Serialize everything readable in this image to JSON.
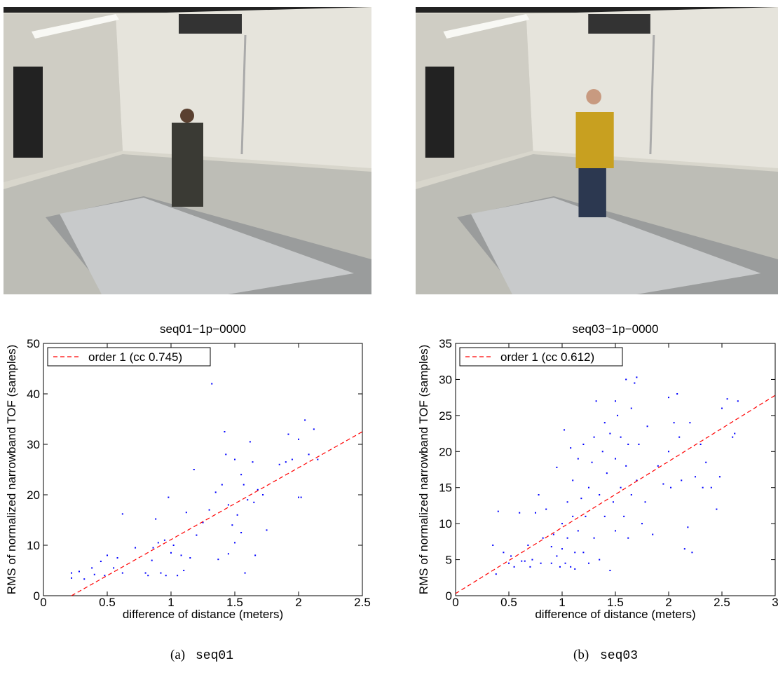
{
  "chart_data": [
    {
      "type": "scatter",
      "title": "seq01−1p−0000",
      "x_label": "difference of distance (meters)",
      "y_label": "RMS of normalized narrowband TOF (samples)",
      "xlim": [
        0,
        2.5
      ],
      "ylim": [
        0,
        50
      ],
      "xticks": [
        0,
        0.5,
        1,
        1.5,
        2,
        2.5
      ],
      "yticks": [
        0,
        10,
        20,
        30,
        40,
        50
      ],
      "legend": "upper left",
      "series": [
        {
          "color": "#0000ff",
          "x": [
            0.22,
            0.22,
            0.28,
            0.32,
            0.38,
            0.4,
            0.45,
            0.48,
            0.5,
            0.55,
            0.58,
            0.62,
            0.62,
            0.72,
            0.8,
            0.82,
            0.85,
            0.86,
            0.88,
            0.9,
            0.92,
            0.95,
            0.96,
            0.98,
            1.0,
            1.02,
            1.05,
            1.08,
            1.1,
            1.12,
            1.15,
            1.18,
            1.2,
            1.25,
            1.3,
            1.32,
            1.35,
            1.37,
            1.4,
            1.42,
            1.43,
            1.45,
            1.45,
            1.48,
            1.5,
            1.5,
            1.52,
            1.55,
            1.55,
            1.57,
            1.58,
            1.6,
            1.62,
            1.64,
            1.65,
            1.66,
            1.68,
            1.72,
            1.75,
            1.85,
            1.9,
            1.92,
            1.95,
            2.0,
            2.0,
            2.02,
            2.05,
            2.08,
            2.12,
            2.15
          ],
          "values": [
            4.5,
            3.5,
            4.8,
            3.3,
            5.5,
            4.2,
            6.8,
            4,
            8,
            5.5,
            7.5,
            16.2,
            4.5,
            9.5,
            4.5,
            4,
            7,
            9.5,
            15.2,
            10.5,
            4.5,
            11,
            4,
            19.5,
            8.5,
            10,
            4,
            8,
            5,
            16.5,
            7.5,
            25,
            12,
            14.5,
            17,
            42,
            20.5,
            7.2,
            22,
            32.5,
            28,
            18,
            8.3,
            14,
            27,
            10.5,
            16,
            24,
            12.5,
            22,
            4.5,
            19,
            30.5,
            26.5,
            18.5,
            8,
            21,
            20,
            13,
            26,
            26.5,
            32,
            27,
            31,
            19.5,
            19.5,
            34.8,
            28,
            33,
            27
          ]
        },
        {
          "name": "order 1 (cc 0.745)",
          "color": "#ff0000",
          "style": "dashed",
          "x": [
            0.22,
            2.5
          ],
          "values": [
            0,
            32.5
          ]
        }
      ]
    },
    {
      "type": "scatter",
      "title": "seq03−1p−0000",
      "x_label": "difference of distance (meters)",
      "y_label": "RMS of normalized narrowband TOF (samples)",
      "xlim": [
        0,
        3
      ],
      "ylim": [
        0,
        35
      ],
      "xticks": [
        0,
        0.5,
        1,
        1.5,
        2,
        2.5,
        3
      ],
      "yticks": [
        0,
        5,
        10,
        15,
        20,
        25,
        30,
        35
      ],
      "legend": "upper left",
      "series": [
        {
          "color": "#0000ff",
          "x": [
            0.35,
            0.38,
            0.4,
            0.45,
            0.5,
            0.52,
            0.55,
            0.6,
            0.62,
            0.65,
            0.68,
            0.7,
            0.72,
            0.75,
            0.78,
            0.8,
            0.82,
            0.85,
            0.9,
            0.9,
            0.92,
            0.95,
            0.95,
            0.98,
            1.0,
            1.0,
            1.02,
            1.03,
            1.05,
            1.05,
            1.08,
            1.08,
            1.1,
            1.1,
            1.12,
            1.12,
            1.15,
            1.15,
            1.18,
            1.2,
            1.2,
            1.22,
            1.25,
            1.25,
            1.28,
            1.3,
            1.3,
            1.32,
            1.35,
            1.35,
            1.38,
            1.4,
            1.4,
            1.42,
            1.45,
            1.45,
            1.48,
            1.5,
            1.5,
            1.5,
            1.52,
            1.55,
            1.55,
            1.58,
            1.6,
            1.6,
            1.62,
            1.62,
            1.65,
            1.65,
            1.68,
            1.7,
            1.7,
            1.72,
            1.75,
            1.78,
            1.8,
            1.85,
            1.9,
            1.95,
            2.0,
            2.0,
            2.02,
            2.05,
            2.08,
            2.1,
            2.12,
            2.15,
            2.18,
            2.2,
            2.22,
            2.25,
            2.3,
            2.32,
            2.35,
            2.4,
            2.45,
            2.48,
            2.5,
            2.55,
            2.6,
            2.65,
            2.62
          ],
          "values": [
            7,
            3,
            11.7,
            6,
            4.5,
            5.5,
            4,
            11.5,
            4.8,
            4.8,
            7,
            4,
            5,
            11.5,
            14,
            4.5,
            8,
            12,
            6.8,
            4.5,
            8.5,
            17.8,
            5.5,
            4,
            10,
            6.5,
            23,
            4.5,
            13,
            8,
            20.5,
            4,
            16,
            11,
            6,
            3.7,
            19,
            9,
            13.5,
            21,
            6,
            11,
            4.5,
            15,
            18.5,
            22,
            8,
            27,
            14,
            5,
            20,
            24,
            11,
            17,
            3.5,
            22.5,
            13,
            27,
            19,
            9,
            25,
            15,
            22,
            11,
            30,
            18,
            21,
            8,
            26,
            14,
            29.5,
            30.3,
            16,
            21,
            10,
            13,
            23.5,
            8.5,
            18,
            15.5,
            27.5,
            20,
            15,
            24,
            28,
            22,
            16,
            6.5,
            9.5,
            24,
            6,
            16.5,
            21,
            15,
            18.5,
            15,
            12,
            16.5,
            26,
            27.3,
            22,
            27,
            22.5
          ]
        },
        {
          "name": "order 1 (cc 0.612)",
          "color": "#ff0000",
          "style": "dashed",
          "x": [
            0,
            3
          ],
          "values": [
            0.3,
            27.8
          ]
        }
      ]
    }
  ],
  "captions": [
    {
      "label": "(a)",
      "code": "seq01"
    },
    {
      "label": "(b)",
      "code": "seq03"
    }
  ]
}
